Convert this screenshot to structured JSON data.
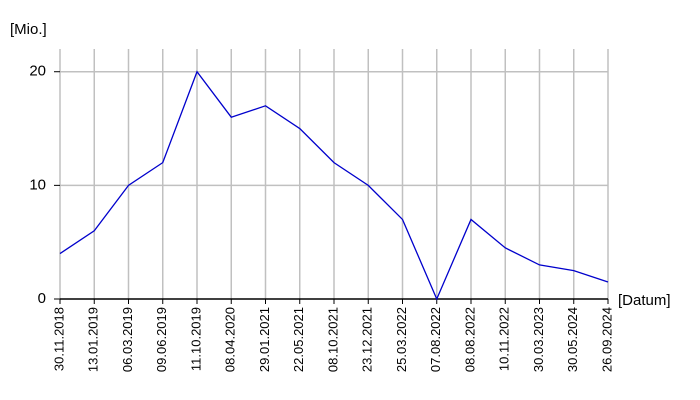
{
  "chart_data": {
    "type": "line",
    "y_label": "[Mio.]",
    "x_label": "[Datum]",
    "categories": [
      "30.11.2018",
      "13.01.2019",
      "06.03.2019",
      "09.06.2019",
      "11.10.2019",
      "08.04.2020",
      "29.01.2021",
      "22.05.2021",
      "08.10.2021",
      "23.12.2021",
      "25.03.2022",
      "07.08.2022",
      "08.08.2022",
      "10.11.2022",
      "30.03.2023",
      "30.05.2024",
      "26.09.2024"
    ],
    "values": [
      4,
      6,
      10,
      12,
      20,
      16,
      17,
      15,
      12,
      10,
      7,
      0,
      7,
      4.5,
      3,
      2.5,
      1.5
    ],
    "color": "#0000cc",
    "grid": true,
    "ylim": [
      0,
      22
    ],
    "yticks": [
      0,
      10,
      20
    ]
  }
}
